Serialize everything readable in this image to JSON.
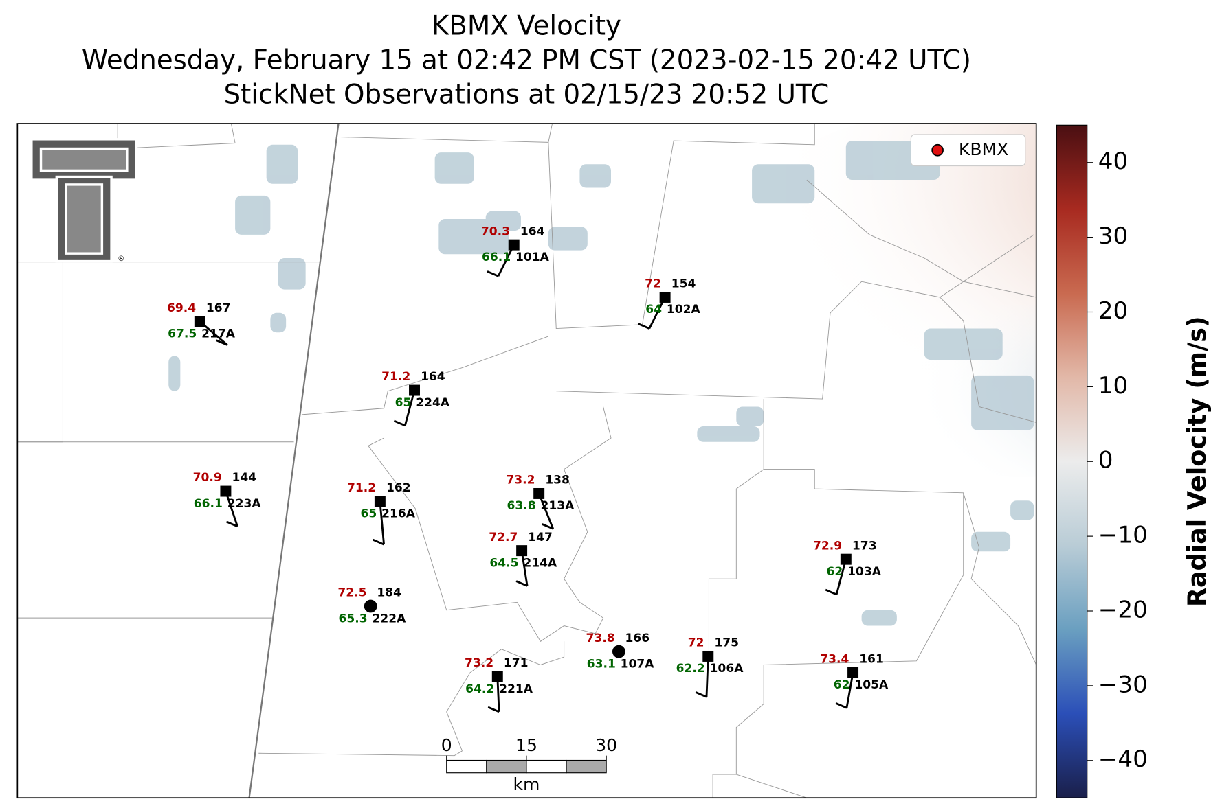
{
  "chart_data": {
    "type": "station-map",
    "title": [
      "KBMX Velocity",
      "Wednesday, February 15 at 02:42 PM CST (2023-02-15 20:42 UTC)",
      "StickNet Observations at 02/15/23 20:52 UTC"
    ],
    "legend": "KBMX",
    "colorbar": {
      "label": "Radial Velocity (m/s)",
      "clim": [
        -45,
        45
      ],
      "ticks": [
        40,
        30,
        20,
        10,
        0,
        {
          "value": -10,
          "label": "−10"
        },
        {
          "value": -20,
          "label": "−20"
        },
        {
          "value": -30,
          "label": "−30"
        },
        {
          "value": -40,
          "label": "−40"
        }
      ],
      "colors": [
        "#1a1f4a",
        "#2b4fb8",
        "#6a9fc0",
        "#b9ccd6",
        "#ececec",
        "#e2b8a8",
        "#c96a50",
        "#a82a20",
        "#4a0f12"
      ]
    },
    "scale_bar": {
      "ticks": [
        0,
        15,
        30
      ],
      "unit": "km"
    },
    "stations": [
      {
        "id": "101A",
        "temperature": 70.3,
        "dewpoint": 66.1,
        "value": 164
      },
      {
        "id": "102A",
        "temperature": 72.0,
        "dewpoint": 64.0,
        "value": 154
      },
      {
        "id": "217A",
        "temperature": 69.4,
        "dewpoint": 67.5,
        "value": 167
      },
      {
        "id": "224A",
        "temperature": 71.2,
        "dewpoint": 65.0,
        "value": 164
      },
      {
        "id": "223A",
        "temperature": 70.9,
        "dewpoint": 66.1,
        "value": 144
      },
      {
        "id": "216A",
        "temperature": 71.2,
        "dewpoint": 65.0,
        "value": 162
      },
      {
        "id": "213A",
        "temperature": 73.2,
        "dewpoint": 63.8,
        "value": 138
      },
      {
        "id": "214A",
        "temperature": 72.7,
        "dewpoint": 64.5,
        "value": 147
      },
      {
        "id": "222A",
        "temperature": 72.5,
        "dewpoint": 65.3,
        "value": 184
      },
      {
        "id": "103A",
        "temperature": 72.9,
        "dewpoint": 62.0,
        "value": 173
      },
      {
        "id": "107A",
        "temperature": 73.8,
        "dewpoint": 63.1,
        "value": 166
      },
      {
        "id": "106A",
        "temperature": 72.0,
        "dewpoint": 62.2,
        "value": 175
      },
      {
        "id": "221A",
        "temperature": 73.2,
        "dewpoint": 64.2,
        "value": 171
      },
      {
        "id": "105A",
        "temperature": 73.4,
        "dewpoint": 62.0,
        "value": 161
      }
    ]
  }
}
